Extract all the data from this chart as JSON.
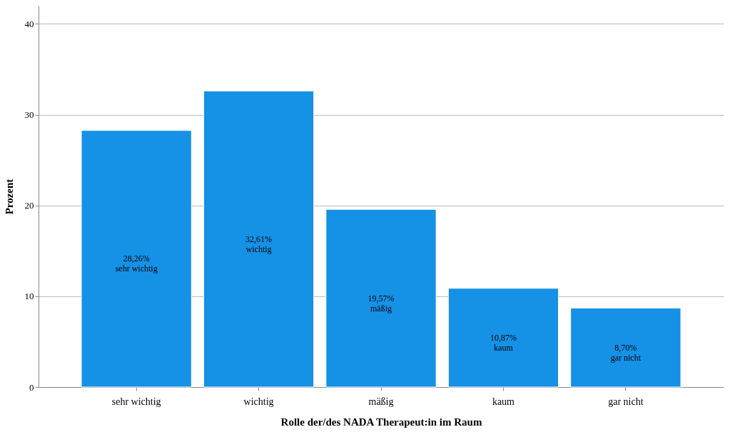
{
  "chart_data": {
    "type": "bar",
    "xlabel": "Rolle der/des NADA Therapeut:in im Raum",
    "ylabel": "Prozent",
    "categories": [
      "sehr wichtig",
      "wichtig",
      "mäßig",
      "kaum",
      "gar nicht"
    ],
    "values": [
      28.26,
      32.61,
      19.57,
      10.87,
      8.7
    ],
    "value_labels": [
      "28,26%",
      "32,61%",
      "19,57%",
      "10,87%",
      "8,70%"
    ],
    "color": "#1591e6",
    "ylim": [
      0,
      42
    ],
    "yticks": [
      0,
      10,
      20,
      30,
      40
    ],
    "grid": "y"
  }
}
